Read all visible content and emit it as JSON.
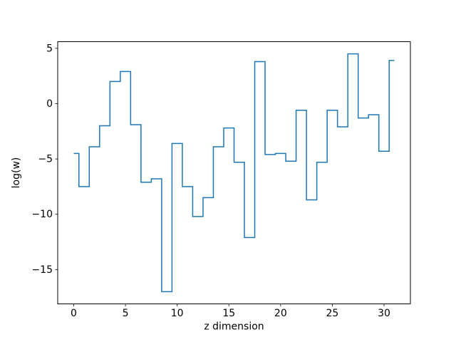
{
  "figure": {
    "background": "#ffffff",
    "axis_color": "#000000",
    "tick_label_color": "#000000"
  },
  "chart_data": {
    "type": "line",
    "subtype": "step-mid",
    "title": "",
    "xlabel": "z dimension",
    "ylabel": "log(w)",
    "line_color": "#1f77b4",
    "line_width": 1.5,
    "grid": false,
    "legend_position": "none",
    "x": [
      0,
      1,
      2,
      3,
      4,
      5,
      6,
      7,
      8,
      9,
      10,
      11,
      12,
      13,
      14,
      15,
      16,
      17,
      18,
      19,
      20,
      21,
      22,
      23,
      24,
      25,
      26,
      27,
      28,
      29,
      30,
      31
    ],
    "values": [
      -4.5,
      -7.5,
      -3.9,
      -2.0,
      2.0,
      2.9,
      -1.9,
      -7.1,
      -6.8,
      -17.0,
      -3.6,
      -7.5,
      -10.2,
      -8.5,
      -3.9,
      -2.2,
      -5.3,
      -12.1,
      3.8,
      -4.6,
      -4.5,
      -5.2,
      -0.6,
      -8.7,
      -5.3,
      -0.6,
      -2.1,
      4.5,
      -1.3,
      -1.0,
      -4.3,
      3.9
    ],
    "xlim": [
      -1.55,
      32.55
    ],
    "ylim": [
      -18.1,
      5.6
    ],
    "xticks": [
      0,
      5,
      10,
      15,
      20,
      25,
      30
    ],
    "yticks": [
      5,
      0,
      -5,
      -10,
      -15
    ]
  }
}
